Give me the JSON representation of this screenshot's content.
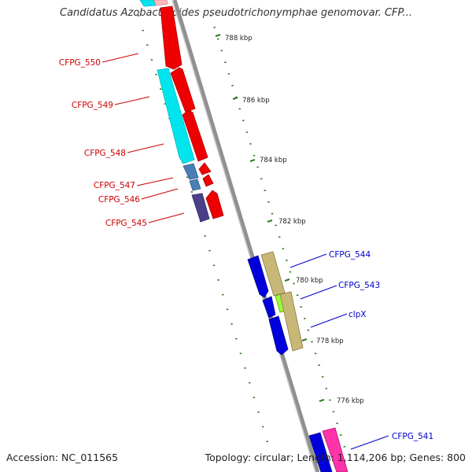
{
  "title": "Candidatus Azobacteroides pseudotrichonymphae genomovar. CFP...",
  "footer": {
    "accession": "Accession: NC_011565",
    "summary": "Topology: circular; Length: 1,114,206 bp; Genes: 800"
  },
  "colors": {
    "backbone": "#8a8a8a",
    "left_label": "#cc0000",
    "right_label": "#0000cc",
    "tick": "#2e7d1e",
    "red_gene": "#ee0000",
    "cyan_gene": "#00e5ee",
    "blue_gene": "#0000dd",
    "khaki_gene": "#c8b878",
    "steel_gene": "#4a7fb5",
    "purple_gene": "#4b3f8a",
    "lime_gene": "#99ff33",
    "pink_gene": "#ff33aa"
  },
  "scale_ticks": [
    "788 kbp",
    "786 kbp",
    "784 kbp",
    "782 kbp",
    "780 kbp",
    "778 kbp",
    "776 kbp"
  ],
  "left_genes": [
    "CFPG_550",
    "CFPG_549",
    "CFPG_548",
    "CFPG_547",
    "CFPG_546",
    "CFPG_545"
  ],
  "right_genes": [
    "CFPG_544",
    "CFPG_543",
    "clpX",
    "CFPG_541"
  ]
}
